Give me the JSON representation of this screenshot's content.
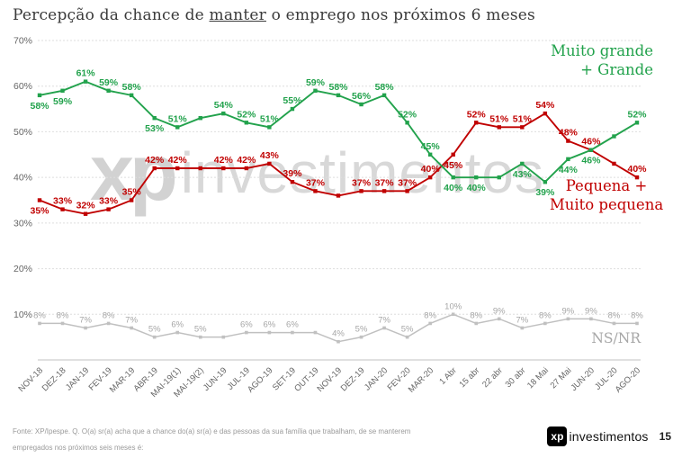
{
  "title": {
    "prefix": "Percepção da chance de ",
    "underlined": "manter",
    "suffix": " o emprego nos próximos 6 meses"
  },
  "watermark": {
    "logo": "xp",
    "text": "investimentos"
  },
  "legends": {
    "green_line1": "Muito grande",
    "green_line2": "+ Grande",
    "red_line1": "Pequena +",
    "red_line2": "Muito pequena",
    "gray": "NS/NR"
  },
  "footer": {
    "source_line1": "Fonte: XP/Ipespe. Q. O(a) sr(a) acha que a chance do(a) sr(a) e das pessoas da sua família que trabalham, de se manterem",
    "source_line2": "empregados nos próximos seis meses é:",
    "logo_text": "xp",
    "logo_brand": "investimentos",
    "page_number": "15"
  },
  "colors": {
    "green": "#22A24C",
    "red": "#C00000",
    "gray_line": "#C0C0C0",
    "gray_label": "#A6A6A6",
    "axis_text": "#666666",
    "grid": "#DEDEDE",
    "axis_line": "#C0C0C0",
    "title_text": "#3A3A3A"
  },
  "chart_data": {
    "type": "line",
    "title": "Percepção da chance de manter o emprego nos próximos 6 meses",
    "xlabel": "",
    "ylabel": "",
    "ylim": [
      0,
      70
    ],
    "yticks": [
      10,
      20,
      30,
      40,
      50,
      60,
      70
    ],
    "grid": "horizontal-dashed",
    "marker": "square",
    "legend_position": "right-inline",
    "categories": [
      "NOV-18",
      "DEZ-18",
      "JAN-19",
      "FEV-19",
      "MAR-19",
      "ABR-19",
      "MAI-19(1)",
      "MAI-19(2)",
      "JUN-19",
      "JUL-19",
      "AGO-19",
      "SET-19",
      "OUT-19",
      "NOV-19",
      "DEZ-19",
      "JAN-20",
      "FEV-20",
      "MAR-20",
      "1 Abr",
      "15 abr",
      "22 abr",
      "30 abr",
      "18 Mai",
      "27 Mai",
      "JUN-20",
      "JUL-20",
      "AGO-20"
    ],
    "series": [
      {
        "id": "muito-grande-grande",
        "name": "Muito grande + Grande",
        "color": "#22A24C",
        "values": [
          58,
          59,
          61,
          59,
          58,
          53,
          51,
          53,
          54,
          52,
          51,
          55,
          59,
          58,
          56,
          58,
          52,
          45,
          40,
          40,
          40,
          43,
          39,
          44,
          46,
          49,
          52
        ],
        "labels": [
          "58%",
          "59%",
          "61%",
          "59%",
          "58%",
          "53%",
          "51%",
          "",
          "54%",
          "52%",
          "51%",
          "55%",
          "59%",
          "58%",
          "56%",
          "58%",
          "52%",
          "45%",
          "40%",
          "40%",
          "",
          "43%",
          "39%",
          "44%",
          "46%",
          "",
          "52%"
        ],
        "label_pos": [
          "b",
          "b",
          "a",
          "a",
          "a",
          "b",
          "a",
          "",
          "a",
          "a",
          "a",
          "a",
          "a",
          "a",
          "a",
          "a",
          "a",
          "a",
          "b",
          "b",
          "",
          "b",
          "b",
          "b",
          "b",
          "",
          "a"
        ]
      },
      {
        "id": "pequena-muito-pequena",
        "name": "Pequena + Muito pequena",
        "color": "#C00000",
        "values": [
          35,
          33,
          32,
          33,
          35,
          42,
          42,
          42,
          42,
          42,
          43,
          39,
          37,
          36,
          37,
          37,
          37,
          40,
          45,
          52,
          51,
          51,
          54,
          48,
          46,
          43,
          40
        ],
        "labels": [
          "35%",
          "33%",
          "32%",
          "33%",
          "35%",
          "42%",
          "42%",
          "",
          "42%",
          "42%",
          "43%",
          "39%",
          "37%",
          "",
          "37%",
          "37%",
          "37%",
          "40%",
          "45%",
          "52%",
          "51%",
          "51%",
          "54%",
          "48%",
          "46%",
          "",
          "40%"
        ],
        "label_pos": [
          "b",
          "a",
          "a",
          "a",
          "a",
          "a",
          "a",
          "",
          "a",
          "a",
          "a",
          "a",
          "a",
          "",
          "a",
          "a",
          "a",
          "a",
          "b",
          "a",
          "a",
          "a",
          "a",
          "a",
          "a",
          "",
          "a"
        ]
      },
      {
        "id": "ns-nr",
        "name": "NS/NR",
        "color": "#C0C0C0",
        "label_color": "#A6A6A6",
        "small": true,
        "values": [
          8,
          8,
          7,
          8,
          7,
          5,
          6,
          5,
          5,
          6,
          6,
          6,
          6,
          4,
          5,
          7,
          5,
          8,
          10,
          8,
          9,
          7,
          8,
          9,
          9,
          8,
          8
        ],
        "labels": [
          "8%",
          "8%",
          "7%",
          "8%",
          "7%",
          "5%",
          "6%",
          "5%",
          "",
          "6%",
          "6%",
          "6%",
          "",
          "4%",
          "5%",
          "7%",
          "5%",
          "8%",
          "10%",
          "8%",
          "9%",
          "7%",
          "8%",
          "9%",
          "9%",
          "8%",
          "8%"
        ],
        "label_pos": [
          "a",
          "a",
          "a",
          "a",
          "a",
          "a",
          "a",
          "a",
          "",
          "a",
          "a",
          "a",
          "",
          "a",
          "a",
          "a",
          "a",
          "a",
          "a",
          "a",
          "a",
          "a",
          "a",
          "a",
          "a",
          "a",
          "a"
        ]
      }
    ]
  }
}
